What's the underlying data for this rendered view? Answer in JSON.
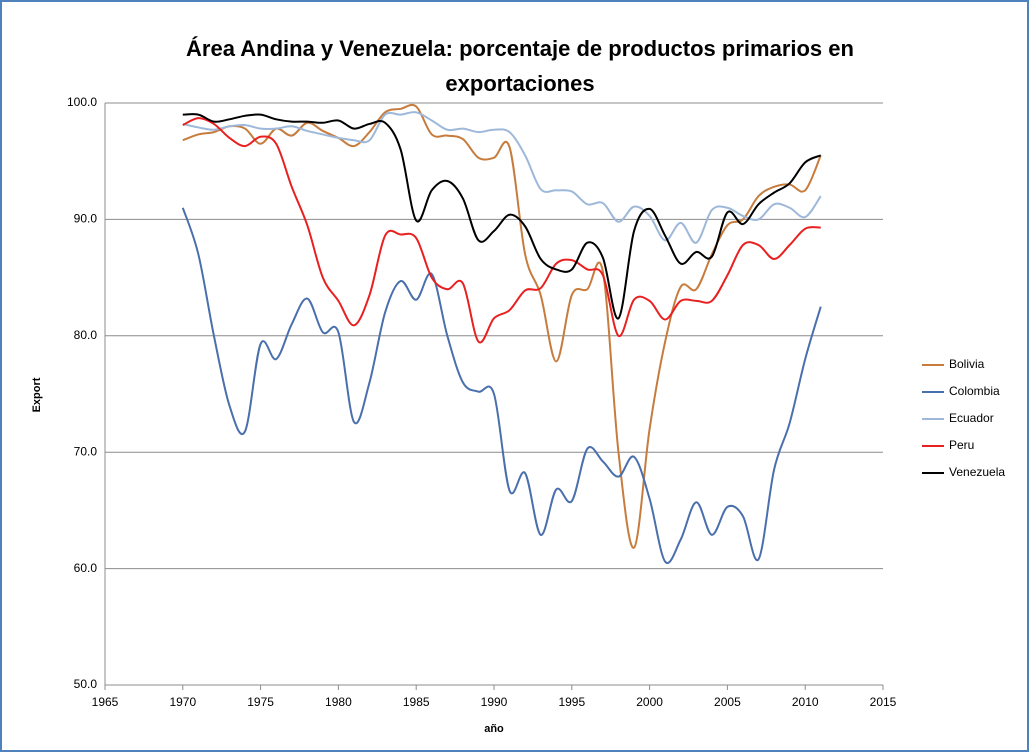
{
  "chart_data": {
    "type": "line",
    "title": [
      "Área Andina y Venezuela: porcentaje de productos primarios en",
      "exportaciones"
    ],
    "x_label": "año",
    "y_label": "Export",
    "x": [
      1970,
      1971,
      1972,
      1973,
      1974,
      1975,
      1976,
      1977,
      1978,
      1979,
      1980,
      1981,
      1982,
      1983,
      1984,
      1985,
      1986,
      1987,
      1988,
      1989,
      1990,
      1991,
      1992,
      1993,
      1994,
      1995,
      1996,
      1997,
      1998,
      1999,
      2000,
      2001,
      2002,
      2003,
      2004,
      2005,
      2006,
      2007,
      2008,
      2009,
      2010,
      2011
    ],
    "series": [
      {
        "name": "Bolivia",
        "color": "#c77c3e",
        "values": [
          96.8,
          97.3,
          97.5,
          98,
          97.8,
          96.5,
          97.8,
          97.2,
          98.3,
          97.6,
          97,
          96.3,
          97.5,
          99.2,
          99.5,
          99.7,
          97.3,
          97.2,
          96.9,
          95.3,
          95.3,
          96.2,
          87,
          83.5,
          77.8,
          83.5,
          84,
          85.5,
          70,
          61.8,
          72,
          79.5,
          84.2,
          84,
          87,
          89.5,
          90,
          92,
          92.8,
          93,
          92.5,
          95.5
        ]
      },
      {
        "name": "Colombia",
        "color": "#4a6fad",
        "values": [
          91,
          87,
          80,
          74,
          71.8,
          79.3,
          78,
          81,
          83.2,
          80.3,
          80.3,
          72.6,
          76,
          82,
          84.7,
          83.1,
          85.3,
          80,
          76,
          75.2,
          75,
          66.7,
          68.2,
          62.9,
          66.8,
          65.8,
          70.3,
          69.2,
          67.9,
          69.6,
          66,
          60.6,
          62.5,
          65.7,
          62.9,
          65.3,
          64.5,
          60.8,
          68.5,
          72.5,
          78,
          82.5
        ]
      },
      {
        "name": "Ecuador",
        "color": "#9db8d9",
        "values": [
          98.2,
          97.9,
          97.7,
          98,
          98.1,
          97.8,
          97.8,
          98,
          97.6,
          97.3,
          97,
          96.8,
          96.8,
          99,
          99,
          99.2,
          98.5,
          97.7,
          97.8,
          97.5,
          97.7,
          97.5,
          95.5,
          92.6,
          92.5,
          92.4,
          91.3,
          91.4,
          89.8,
          91.1,
          90.3,
          88.2,
          89.7,
          88,
          90.8,
          91,
          90.3,
          90,
          91.3,
          91,
          90.2,
          92
        ]
      },
      {
        "name": "Peru",
        "color": "#e8201f",
        "values": [
          98.1,
          98.7,
          98.2,
          97,
          96.3,
          97.1,
          96.5,
          92.8,
          89.5,
          85,
          83,
          80.9,
          83.5,
          88.6,
          88.7,
          88.4,
          85,
          84,
          84.5,
          79.5,
          81.5,
          82.2,
          83.9,
          84.1,
          86.2,
          86.5,
          85.7,
          85.2,
          80,
          83.1,
          83,
          81.4,
          83,
          83,
          83,
          85.2,
          87.8,
          87.8,
          86.6,
          87.8,
          89.2,
          89.3
        ]
      },
      {
        "name": "Venezuela",
        "color": "#000000",
        "values": [
          99,
          99,
          98.4,
          98.6,
          98.9,
          99,
          98.6,
          98.4,
          98.4,
          98.3,
          98.5,
          97.8,
          98.2,
          98.3,
          96,
          89.9,
          92.5,
          93.3,
          91.8,
          88.2,
          89,
          90.4,
          89.4,
          86.6,
          85.7,
          85.7,
          88,
          86.7,
          81.5,
          89,
          90.9,
          88.6,
          86.2,
          87.2,
          86.8,
          90.6,
          89.6,
          91.3,
          92.3,
          93.1,
          94.9,
          95.5
        ]
      }
    ],
    "xlim": [
      1965,
      2015
    ],
    "xticks": [
      1965,
      1970,
      1975,
      1980,
      1985,
      1990,
      1995,
      2000,
      2005,
      2010,
      2015
    ],
    "ylim": [
      50,
      100
    ],
    "yticks": [
      {
        "value": 50,
        "label": "50.0"
      },
      {
        "value": 60,
        "label": "60.0"
      },
      {
        "value": 70,
        "label": "70.0"
      },
      {
        "value": 80,
        "label": "80.0"
      },
      {
        "value": 90,
        "label": "90.0"
      },
      {
        "value": 100,
        "label": "100.0"
      }
    ],
    "grid": true,
    "smooth": true,
    "legend": "right"
  }
}
